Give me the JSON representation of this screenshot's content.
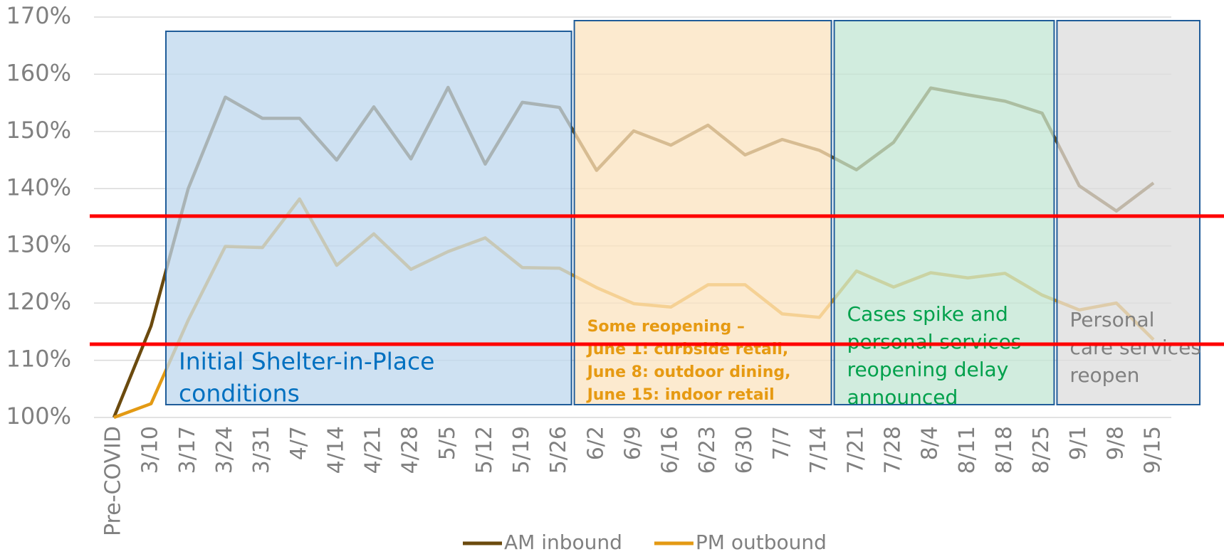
{
  "chart_data": {
    "type": "line",
    "categories": [
      "Pre-COVID",
      "3/10",
      "3/17",
      "3/24",
      "3/31",
      "4/7",
      "4/14",
      "4/21",
      "4/28",
      "5/5",
      "5/12",
      "5/19",
      "5/26",
      "6/2",
      "6/9",
      "6/16",
      "6/23",
      "6/30",
      "7/7",
      "7/14",
      "7/21",
      "7/28",
      "8/4",
      "8/11",
      "8/18",
      "8/25",
      "9/1",
      "9/8",
      "9/15"
    ],
    "series": [
      {
        "name": "AM inbound",
        "color": "#6b4a0e",
        "values": [
          100,
          116,
          140,
          156,
          152.3,
          152.3,
          145,
          154.3,
          145.2,
          157.7,
          144.3,
          155.1,
          154.2,
          143.2,
          150.1,
          147.6,
          151.1,
          145.9,
          148.6,
          146.7,
          143.3,
          148.1,
          157.6,
          156.4,
          155.3,
          153.2,
          140.5,
          136.1,
          141
        ]
      },
      {
        "name": "PM outbound",
        "color": "#e39a14",
        "values": [
          100,
          102.4,
          117,
          129.9,
          129.7,
          138.2,
          126.6,
          132.1,
          125.9,
          129,
          131.4,
          126.2,
          126.1,
          122.7,
          119.9,
          119.3,
          123.2,
          123.2,
          118.1,
          117.5,
          125.6,
          122.8,
          125.3,
          124.4,
          125.2,
          121.4,
          118.8,
          120,
          113.6
        ]
      }
    ],
    "ylim": [
      100,
      170
    ],
    "yticks": [
      {
        "value": 100,
        "label": "100%"
      },
      {
        "value": 110,
        "label": "110%"
      },
      {
        "value": 120,
        "label": "120%"
      },
      {
        "value": 130,
        "label": "130%"
      },
      {
        "value": 140,
        "label": "140%"
      },
      {
        "value": 150,
        "label": "150%"
      },
      {
        "value": 160,
        "label": "160%"
      },
      {
        "value": 170,
        "label": "170%"
      }
    ],
    "grid": true,
    "legend": "bottom",
    "reference_lines": [
      {
        "value": 135.2,
        "color": "#ff0000"
      },
      {
        "value": 112.8,
        "color": "#ff0000"
      }
    ],
    "regions": [
      {
        "start": "3/17",
        "end": "5/26",
        "fill": "#bdd7ee",
        "border": "#1f5c99",
        "text_color": "#0070c0",
        "label": [
          "Initial Shelter-in-Place",
          "conditions"
        ]
      },
      {
        "start": "6/2",
        "end": "7/14",
        "fill": "#fbe3bf",
        "border": "#1f5c99",
        "text_color": "#e69a12",
        "label": [
          "Some reopening –",
          "June 1: curbside retail,",
          "June 8: outdoor dining,",
          "June 15: indoor retail"
        ]
      },
      {
        "start": "7/21",
        "end": "8/25",
        "fill": "#c2e5d3",
        "border": "#1f5c99",
        "text_color": "#00a04b",
        "label": [
          "Cases spike and",
          "personal services",
          "reopening delay",
          "announced"
        ]
      },
      {
        "start": "9/1",
        "end": "9/15",
        "fill": "#dcdcdc",
        "border": "#1f5c99",
        "text_color": "#808080",
        "label": [
          "Personal",
          "care services",
          "reopen"
        ]
      }
    ]
  }
}
